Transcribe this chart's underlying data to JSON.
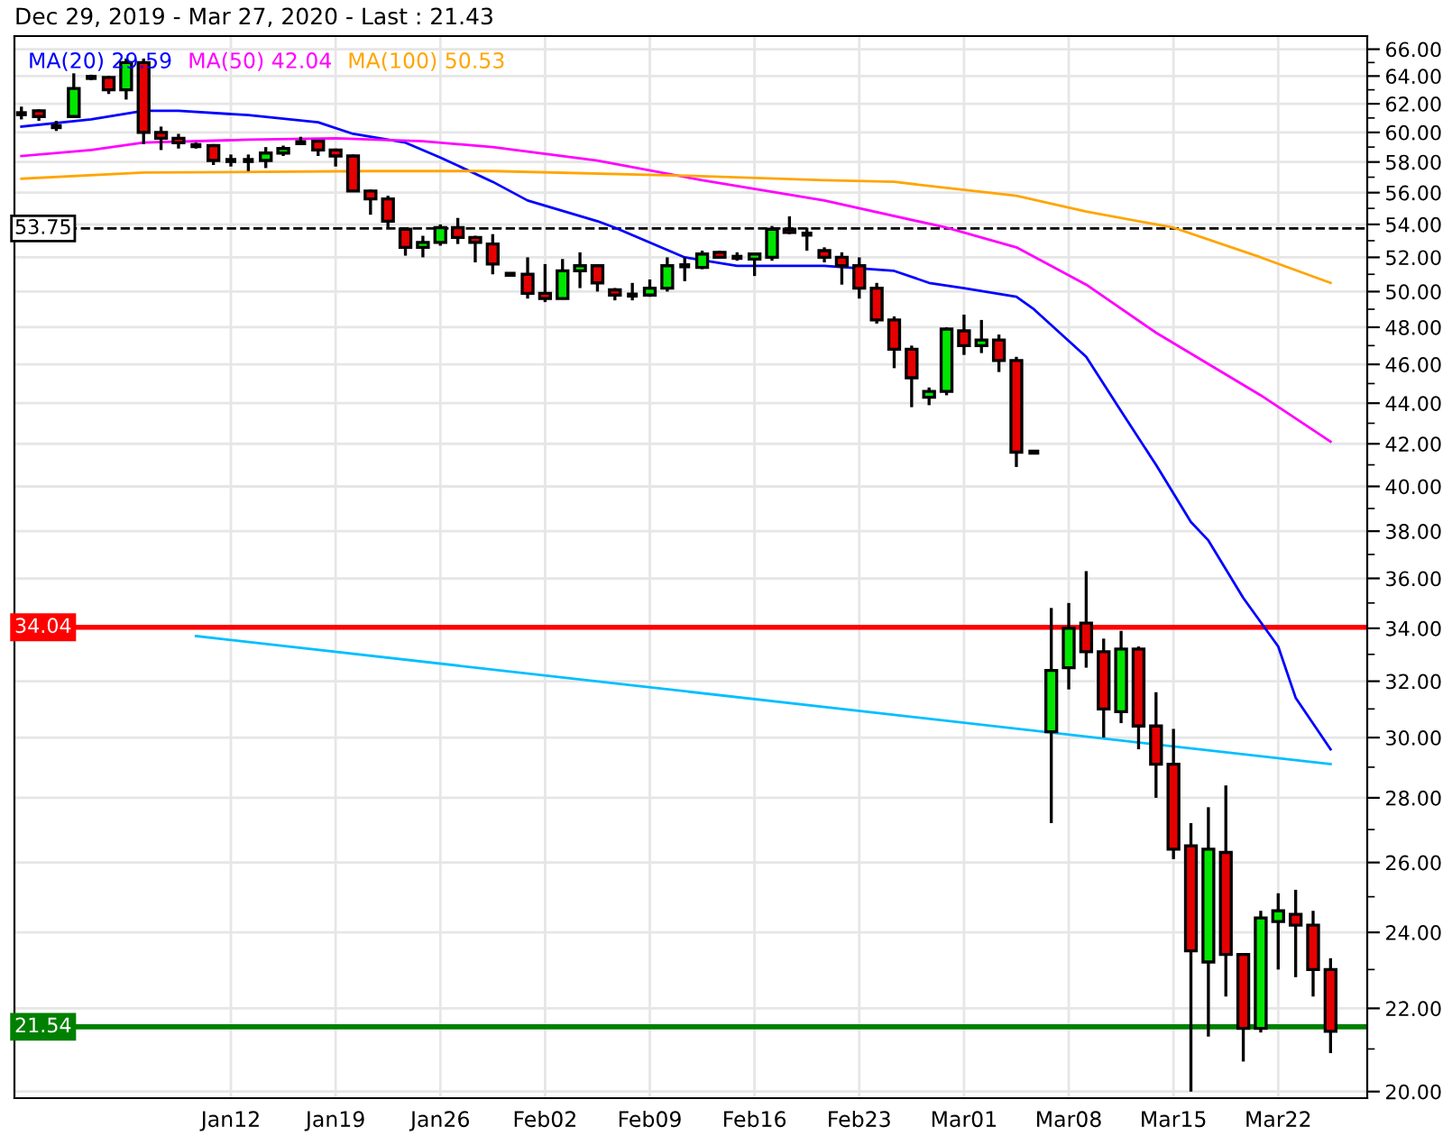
{
  "chart_data": {
    "type": "candlestick",
    "title": "Dec 29, 2019 - Mar 27, 2020 - Last : 21.43",
    "categories": [
      null,
      null,
      null,
      null,
      null,
      null,
      null,
      null,
      null,
      null,
      null,
      null,
      "Jan12",
      null,
      null,
      null,
      null,
      null,
      "Jan19",
      null,
      null,
      null,
      null,
      null,
      "Jan26",
      null,
      null,
      null,
      null,
      null,
      "Feb02",
      null,
      null,
      null,
      null,
      null,
      "Feb09",
      null,
      null,
      null,
      null,
      null,
      "Feb16",
      null,
      null,
      null,
      null,
      null,
      "Feb23",
      null,
      null,
      null,
      null,
      null,
      "Mar01",
      null,
      null,
      null,
      null,
      null,
      "Mar08",
      null,
      null,
      null,
      null,
      null,
      "Mar15",
      null,
      null,
      null,
      null,
      null,
      "Mar22",
      null,
      null,
      null
    ],
    "ohlc": [
      [
        61.3,
        61.8,
        60.9,
        61.3
      ],
      [
        61.5,
        61.6,
        60.8,
        61.1
      ],
      [
        60.4,
        60.8,
        60.1,
        60.4
      ],
      [
        61.1,
        64.2,
        61.0,
        63.1
      ],
      [
        63.9,
        64.1,
        63.7,
        63.9
      ],
      [
        63.9,
        64.0,
        62.7,
        63.0
      ],
      [
        63.0,
        65.3,
        62.3,
        65.0
      ],
      [
        65.0,
        65.3,
        59.2,
        60.0
      ],
      [
        60.0,
        60.4,
        58.8,
        59.6
      ],
      [
        59.6,
        59.9,
        58.9,
        59.3
      ],
      [
        59.1,
        59.3,
        58.9,
        59.1
      ],
      [
        59.1,
        59.2,
        57.8,
        58.1
      ],
      [
        58.1,
        58.5,
        57.7,
        58.1
      ],
      [
        58.1,
        58.5,
        57.4,
        58.1
      ],
      [
        58.1,
        59.0,
        57.6,
        58.6
      ],
      [
        58.6,
        59.1,
        58.4,
        58.9
      ],
      [
        59.3,
        59.7,
        59.2,
        59.3
      ],
      [
        59.4,
        59.5,
        58.4,
        58.8
      ],
      [
        58.8,
        58.9,
        57.7,
        58.4
      ],
      [
        58.4,
        58.5,
        56.1,
        56.1
      ],
      [
        56.1,
        56.2,
        54.6,
        55.6
      ],
      [
        55.6,
        55.8,
        53.8,
        54.2
      ],
      [
        53.7,
        53.8,
        52.1,
        52.6
      ],
      [
        52.6,
        53.3,
        52.0,
        52.9
      ],
      [
        52.9,
        54.0,
        52.7,
        53.8
      ],
      [
        53.8,
        54.4,
        52.8,
        53.2
      ],
      [
        53.2,
        53.3,
        51.7,
        52.9
      ],
      [
        52.8,
        53.4,
        51.0,
        51.6
      ],
      [
        51.0,
        51.1,
        50.9,
        51.0
      ],
      [
        51.0,
        52.0,
        49.6,
        49.9
      ],
      [
        49.9,
        51.6,
        49.4,
        49.6
      ],
      [
        49.6,
        51.9,
        49.6,
        51.2
      ],
      [
        51.2,
        52.3,
        50.2,
        51.5
      ],
      [
        51.5,
        51.6,
        50.0,
        50.5
      ],
      [
        50.1,
        50.2,
        49.5,
        49.8
      ],
      [
        49.8,
        50.5,
        49.5,
        49.8
      ],
      [
        49.8,
        50.7,
        49.7,
        50.2
      ],
      [
        50.2,
        52.0,
        50.0,
        51.5
      ],
      [
        51.5,
        52.0,
        50.6,
        51.5
      ],
      [
        51.4,
        52.4,
        51.3,
        52.2
      ],
      [
        52.3,
        52.4,
        52.0,
        52.0
      ],
      [
        52.0,
        52.3,
        51.8,
        52.0
      ],
      [
        51.9,
        52.2,
        50.9,
        52.2
      ],
      [
        52.0,
        53.9,
        51.8,
        53.7
      ],
      [
        53.7,
        54.5,
        53.4,
        53.5
      ],
      [
        53.4,
        53.8,
        52.4,
        53.4
      ],
      [
        52.4,
        52.6,
        51.7,
        52.0
      ],
      [
        52.0,
        52.3,
        50.4,
        51.5
      ],
      [
        51.5,
        52.0,
        49.6,
        50.2
      ],
      [
        50.2,
        50.5,
        48.2,
        48.4
      ],
      [
        48.4,
        48.6,
        45.8,
        46.8
      ],
      [
        46.8,
        47.0,
        43.8,
        45.3
      ],
      [
        44.3,
        44.8,
        43.9,
        44.6
      ],
      [
        44.6,
        48.0,
        44.4,
        47.9
      ],
      [
        47.8,
        48.7,
        46.5,
        47.0
      ],
      [
        47.0,
        48.4,
        46.6,
        47.3
      ],
      [
        47.3,
        47.6,
        45.6,
        46.2
      ],
      [
        46.2,
        46.4,
        40.9,
        41.6
      ],
      [
        41.6,
        41.6,
        41.6,
        41.6
      ],
      [
        30.2,
        34.8,
        27.2,
        32.4
      ],
      [
        32.5,
        35.0,
        31.7,
        34.0
      ],
      [
        34.2,
        36.3,
        32.5,
        33.1
      ],
      [
        33.1,
        33.6,
        30.0,
        31.0
      ],
      [
        30.9,
        33.9,
        30.5,
        33.2
      ],
      [
        33.2,
        33.3,
        29.6,
        30.4
      ],
      [
        30.4,
        31.6,
        28.0,
        29.1
      ],
      [
        29.1,
        30.3,
        26.1,
        26.4
      ],
      [
        26.5,
        27.2,
        20.0,
        23.5
      ],
      [
        23.2,
        27.7,
        21.3,
        26.4
      ],
      [
        26.3,
        28.4,
        22.3,
        23.4
      ],
      [
        23.4,
        23.4,
        20.7,
        21.5
      ],
      [
        21.5,
        24.6,
        21.4,
        24.4
      ],
      [
        24.3,
        25.1,
        23.0,
        24.6
      ],
      [
        24.5,
        25.2,
        22.8,
        24.2
      ],
      [
        24.2,
        24.6,
        22.3,
        23.0
      ],
      [
        23.0,
        23.3,
        20.9,
        21.43
      ]
    ],
    "colors": [
      "#000000",
      "#e60000",
      "#000000",
      "#00e600",
      "#000000",
      "#e60000",
      "#00e600",
      "#e60000",
      "#e60000",
      "#e60000",
      "#000000",
      "#e60000",
      "#000000",
      "#000000",
      "#00e600",
      "#00e600",
      "#000000",
      "#e60000",
      "#e60000",
      "#e60000",
      "#e60000",
      "#e60000",
      "#e60000",
      "#00e600",
      "#00e600",
      "#e60000",
      "#e60000",
      "#e60000",
      "#000000",
      "#e60000",
      "#e60000",
      "#00e600",
      "#00e600",
      "#e60000",
      "#e60000",
      "#000000",
      "#00e600",
      "#00e600",
      "#000000",
      "#00e600",
      "#e60000",
      "#000000",
      "#00e600",
      "#00e600",
      "#e60000",
      "#000000",
      "#e60000",
      "#e60000",
      "#e60000",
      "#e60000",
      "#e60000",
      "#e60000",
      "#00e600",
      "#00e600",
      "#e60000",
      "#00e600",
      "#e60000",
      "#e60000",
      "#000000",
      "#00e600",
      "#00e600",
      "#e60000",
      "#e60000",
      "#00e600",
      "#e60000",
      "#e60000",
      "#e60000",
      "#e60000",
      "#00e600",
      "#e60000",
      "#e60000",
      "#00e600",
      "#00e600",
      "#e60000",
      "#e60000",
      "#e60000"
    ],
    "series": [
      {
        "type": "line",
        "name": "MA(20) 29.59",
        "color": "#0000ff",
        "values": [
          60.4,
          null,
          null,
          null,
          60.9,
          null,
          null,
          61.5,
          null,
          61.5,
          null,
          null,
          null,
          61.2,
          null,
          null,
          null,
          60.7,
          null,
          59.9,
          null,
          null,
          59.3,
          null,
          58.3,
          null,
          null,
          56.7,
          null,
          55.5,
          null,
          null,
          null,
          54.2,
          53.8,
          null,
          null,
          null,
          52.0,
          null,
          null,
          51.5,
          null,
          null,
          null,
          null,
          51.5,
          null,
          null,
          null,
          51.2,
          null,
          50.5,
          null,
          50.2,
          null,
          null,
          49.7,
          49.0,
          null,
          null,
          46.4,
          null,
          43.6,
          null,
          41.0,
          null,
          38.4,
          37.6,
          null,
          35.2,
          null,
          33.3,
          31.4,
          null,
          29.6
        ]
      },
      {
        "type": "line",
        "name": "MA(50) 42.04",
        "color": "#ff00ff",
        "values": [
          58.4,
          null,
          null,
          null,
          58.8,
          null,
          null,
          59.3,
          null,
          null,
          null,
          null,
          null,
          59.5,
          null,
          null,
          null,
          null,
          59.6,
          null,
          null,
          null,
          null,
          59.4,
          null,
          null,
          null,
          59.0,
          null,
          null,
          null,
          null,
          null,
          58.1,
          null,
          null,
          null,
          null,
          null,
          56.8,
          null,
          null,
          null,
          null,
          null,
          null,
          55.5,
          null,
          null,
          null,
          null,
          null,
          null,
          53.8,
          null,
          null,
          null,
          52.6,
          null,
          null,
          null,
          50.4,
          null,
          null,
          null,
          47.7,
          null,
          null,
          null,
          null,
          null,
          44.4,
          null,
          null,
          null,
          42.1
        ]
      },
      {
        "type": "line",
        "name": "MA(100) 50.53",
        "color": "#ffa500",
        "values": [
          56.9,
          null,
          null,
          null,
          null,
          null,
          null,
          57.3,
          null,
          null,
          null,
          null,
          null,
          null,
          null,
          null,
          null,
          null,
          null,
          null,
          57.4,
          null,
          null,
          null,
          null,
          null,
          null,
          57.4,
          null,
          null,
          null,
          null,
          null,
          null,
          null,
          null,
          null,
          null,
          57.1,
          null,
          null,
          null,
          null,
          null,
          null,
          null,
          56.8,
          null,
          null,
          null,
          56.7,
          null,
          null,
          56.3,
          null,
          null,
          null,
          55.8,
          null,
          null,
          null,
          54.8,
          null,
          null,
          null,
          null,
          53.8,
          null,
          null,
          null,
          null,
          52.0,
          null,
          null,
          null,
          50.5
        ]
      },
      {
        "type": "line",
        "color": "#00bfff",
        "values": [
          null,
          null,
          null,
          null,
          null,
          null,
          null,
          null,
          null,
          null,
          33.7,
          null,
          null,
          null,
          null,
          null,
          null,
          null,
          null,
          null,
          null,
          null,
          null,
          null,
          null,
          null,
          null,
          null,
          null,
          null,
          null,
          null,
          null,
          null,
          null,
          null,
          null,
          null,
          null,
          null,
          null,
          null,
          null,
          null,
          null,
          null,
          null,
          null,
          null,
          null,
          null,
          null,
          null,
          null,
          null,
          null,
          null,
          null,
          null,
          null,
          null,
          null,
          null,
          null,
          null,
          null,
          null,
          null,
          null,
          null,
          null,
          null,
          null,
          null,
          null,
          29.1
        ]
      }
    ],
    "ref_lines": [
      {
        "axis": "y",
        "value": 53.75,
        "label": "53.75",
        "color": "#000000",
        "line_style": "dashed"
      },
      {
        "axis": "y",
        "value": 34.04,
        "label": "34.04",
        "color": "#ff0000",
        "line_style": "solid"
      },
      {
        "axis": "y",
        "value": 21.54,
        "label": "21.54",
        "color": "#008000",
        "line_style": "solid"
      }
    ],
    "log": true,
    "ylim": [
      19.85,
      67.0
    ],
    "yticks": [
      {
        "value": 20,
        "label": "20.00"
      },
      {
        "value": 21,
        "label": null
      },
      {
        "value": 22,
        "label": "22.00"
      },
      {
        "value": 23,
        "label": null
      },
      {
        "value": 24,
        "label": "24.00"
      },
      {
        "value": 25,
        "label": null
      },
      {
        "value": 26,
        "label": "26.00"
      },
      {
        "value": 27,
        "label": null
      },
      {
        "value": 28,
        "label": "28.00"
      },
      {
        "value": 29,
        "label": null
      },
      {
        "value": 30,
        "label": "30.00"
      },
      {
        "value": 31,
        "label": null
      },
      {
        "value": 32,
        "label": "32.00"
      },
      {
        "value": 33,
        "label": null
      },
      {
        "value": 34,
        "label": "34.00"
      },
      {
        "value": 35,
        "label": null
      },
      {
        "value": 36,
        "label": "36.00"
      },
      {
        "value": 37,
        "label": null
      },
      {
        "value": 38,
        "label": "38.00"
      },
      {
        "value": 39,
        "label": null
      },
      {
        "value": 40,
        "label": "40.00"
      },
      {
        "value": 41,
        "label": null
      },
      {
        "value": 42,
        "label": "42.00"
      },
      {
        "value": 43,
        "label": null
      },
      {
        "value": 44,
        "label": "44.00"
      },
      {
        "value": 45,
        "label": null
      },
      {
        "value": 46,
        "label": "46.00"
      },
      {
        "value": 47,
        "label": null
      },
      {
        "value": 48,
        "label": "48.00"
      },
      {
        "value": 49,
        "label": null
      },
      {
        "value": 50,
        "label": "50.00"
      },
      {
        "value": 51,
        "label": null
      },
      {
        "value": 52,
        "label": "52.00"
      },
      {
        "value": 53,
        "label": null
      },
      {
        "value": 54,
        "label": "54.00"
      },
      {
        "value": 55,
        "label": null
      },
      {
        "value": 56,
        "label": "56.00"
      },
      {
        "value": 57,
        "label": null
      },
      {
        "value": 58,
        "label": "58.00"
      },
      {
        "value": 59,
        "label": null
      },
      {
        "value": 60,
        "label": "60.00"
      },
      {
        "value": 61,
        "label": null
      },
      {
        "value": 62,
        "label": "62.00"
      },
      {
        "value": 63,
        "label": null
      },
      {
        "value": 64,
        "label": "64.00"
      },
      {
        "value": 65,
        "label": null
      },
      {
        "value": 66,
        "label": "66.00"
      }
    ],
    "grid": true
  }
}
